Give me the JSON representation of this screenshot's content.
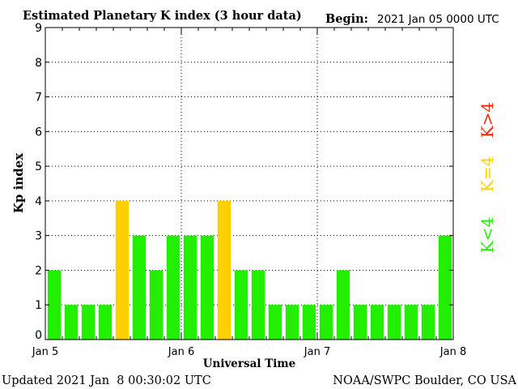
{
  "header": {
    "title": "Estimated Planetary K index (3 hour data)",
    "begin_label": "Begin:",
    "begin_value": "2021 Jan 05 0000 UTC"
  },
  "footer": {
    "updated": "Updated 2021 Jan  8 00:30:02 UTC",
    "source": "NOAA/SWPC Boulder, CO USA"
  },
  "legend": {
    "placement": "right",
    "items": [
      {
        "label": "K>4",
        "color": "#ff2000"
      },
      {
        "label": "K=4",
        "color": "#ffd000"
      },
      {
        "label": "K<4",
        "color": "#22ee00"
      }
    ]
  },
  "chart_data": {
    "type": "bar",
    "title": "Estimated Planetary K index (3 hour data)",
    "xlabel": "Universal Time",
    "ylabel": "Kp index",
    "ylim": [
      0,
      9
    ],
    "yticks": [
      0,
      1,
      2,
      3,
      4,
      5,
      6,
      7,
      8,
      9
    ],
    "grid": "dotted",
    "x_ticks": [
      "Jan 5",
      "Jan 6",
      "Jan 7",
      "Jan 8"
    ],
    "bars_per_day": 8,
    "values": [
      2,
      1,
      1,
      1,
      4,
      3,
      2,
      3,
      3,
      3,
      4,
      2,
      2,
      1,
      1,
      1,
      1,
      2,
      1,
      1,
      1,
      1,
      1,
      3
    ],
    "colors": {
      "below4": "#22ee00",
      "equal4": "#ffd000",
      "above4": "#ff2000"
    }
  }
}
